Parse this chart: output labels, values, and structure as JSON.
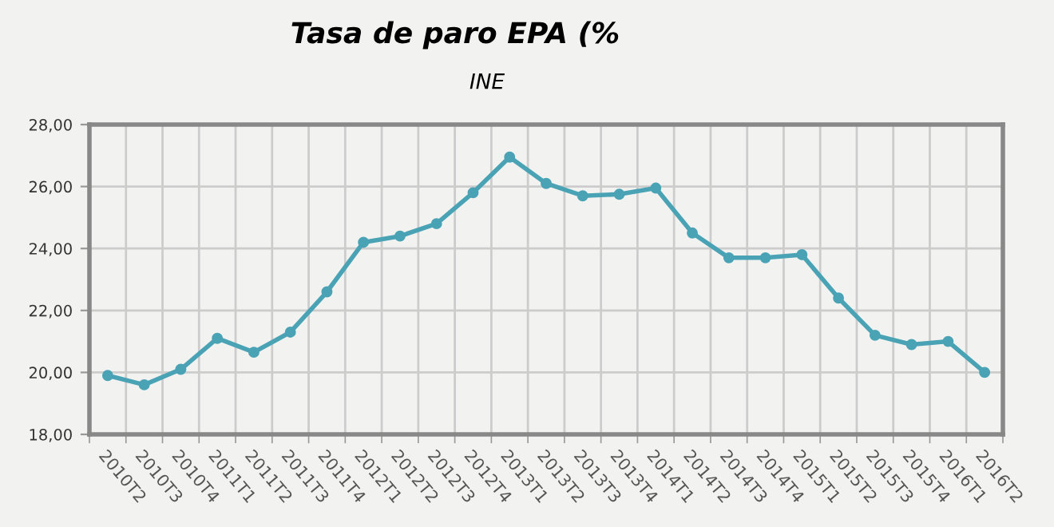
{
  "chart_data": {
    "type": "line",
    "title": "Tasa de paro EPA (%",
    "subtitle": "INE",
    "categories": [
      "2010T2",
      "2010T3",
      "2010T4",
      "2011T1",
      "2011T2",
      "2011T3",
      "2011T4",
      "2012T1",
      "2012T2",
      "2012T3",
      "2012T4",
      "2013T1",
      "2013T2",
      "2013T3",
      "2013T4",
      "2014T1",
      "2014T2",
      "2014T3",
      "2014T4",
      "2015T1",
      "2015T2",
      "2015T3",
      "2015T4",
      "2016T1",
      "2016T2"
    ],
    "series": [
      {
        "color": "#4aa3b5",
        "values": [
          19.9,
          19.6,
          20.1,
          21.1,
          20.65,
          21.3,
          22.6,
          24.2,
          24.4,
          24.8,
          25.8,
          26.95,
          26.1,
          25.7,
          25.75,
          25.95,
          24.5,
          23.7,
          23.7,
          23.8,
          22.4,
          21.2,
          20.9,
          21.0,
          20.0
        ]
      }
    ],
    "ylim": [
      18,
      28
    ],
    "yticks": [
      {
        "value": 18,
        "label": "18,00"
      },
      {
        "value": 20,
        "label": "20,00"
      },
      {
        "value": 22,
        "label": "22,00"
      },
      {
        "value": 24,
        "label": "24,00"
      },
      {
        "value": 26,
        "label": "26,00"
      },
      {
        "value": 28,
        "label": "28,00"
      }
    ],
    "grid": true,
    "marker": "circle",
    "line_style": "solid"
  }
}
